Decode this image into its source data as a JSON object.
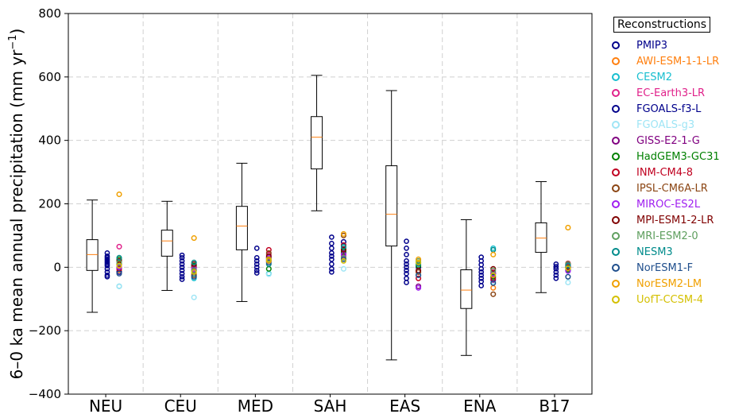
{
  "chart_data": {
    "type": "box",
    "ylabel": "6–0 ka mean annual precipitation (mm yr",
    "ylabel_sup": "−1",
    "ylabel_end": ")",
    "ylim": [
      -400,
      800
    ],
    "yticks": [
      "800",
      "600",
      "400",
      "200",
      "0",
      "−200",
      "−400"
    ],
    "categories": [
      "NEU",
      "CEU",
      "MED",
      "SAH",
      "EAS",
      "ENA",
      "B17"
    ],
    "grid": true,
    "legend_placement": "outside-right",
    "boxes": [
      {
        "category": "NEU",
        "whisker_low": -142,
        "q1": -10,
        "median": 40,
        "q3": 87,
        "whisker_high": 212
      },
      {
        "category": "CEU",
        "whisker_low": -73,
        "q1": 35,
        "median": 83,
        "q3": 117,
        "whisker_high": 208
      },
      {
        "category": "MED",
        "whisker_low": -108,
        "q1": 55,
        "median": 130,
        "q3": 192,
        "whisker_high": 328
      },
      {
        "category": "SAH",
        "whisker_low": 178,
        "q1": 310,
        "median": 410,
        "q3": 475,
        "whisker_high": 605
      },
      {
        "category": "EAS",
        "whisker_low": -292,
        "q1": 67,
        "median": 167,
        "q3": 320,
        "whisker_high": 557
      },
      {
        "category": "ENA",
        "whisker_low": -278,
        "q1": -130,
        "median": -72,
        "q3": -8,
        "whisker_high": 150
      },
      {
        "category": "B17",
        "whisker_low": -80,
        "q1": 47,
        "median": 92,
        "q3": 140,
        "whisker_high": 270
      }
    ],
    "pmip3_points": {
      "NEU": [
        45,
        35,
        25,
        15,
        5,
        -5,
        -15,
        -25,
        -30,
        30,
        20,
        10
      ],
      "CEU": [
        38,
        30,
        20,
        10,
        0,
        -10,
        -20,
        -30,
        -38
      ],
      "MED": [
        60,
        30,
        20,
        10,
        0,
        -10,
        -18
      ],
      "SAH": [
        95,
        75,
        60,
        45,
        35,
        25,
        10,
        -5,
        -15
      ],
      "EAS": [
        82,
        60,
        40,
        20,
        10,
        0,
        -10,
        -20,
        -35,
        -48
      ],
      "ENA": [
        32,
        20,
        8,
        -5,
        -15,
        -25,
        -35,
        -45,
        -58
      ],
      "B17": [
        10,
        2,
        -5,
        -15,
        -25,
        -35
      ]
    },
    "series": [
      {
        "name": "AWI-ESM-1-1-LR",
        "color": "#ff7f0e",
        "values": [
          -10,
          -20,
          30,
          60,
          -15,
          -65,
          0
        ]
      },
      {
        "name": "CESM2",
        "color": "#17becf",
        "values": [
          -60,
          -35,
          -20,
          60,
          -25,
          60,
          -8
        ]
      },
      {
        "name": "EC-Earth3-LR",
        "color": "#e0218a",
        "values": [
          65,
          -5,
          40,
          35,
          15,
          -15,
          5
        ]
      },
      {
        "name": "FGOALS-f3-L",
        "color": "#00008b",
        "values": [
          -15,
          5,
          20,
          80,
          0,
          -20,
          0
        ]
      },
      {
        "name": "FGOALS-g3",
        "color": "#9fe5f5",
        "values": [
          -60,
          -95,
          -22,
          -5,
          -10,
          -45,
          -48
        ]
      },
      {
        "name": "GISS-E2-1-G",
        "color": "#800080",
        "values": [
          0,
          -10,
          30,
          45,
          -60,
          -40,
          8
        ]
      },
      {
        "name": "HadGEM3-GC31",
        "color": "#008000",
        "values": [
          25,
          5,
          -5,
          50,
          5,
          -30,
          -10
        ]
      },
      {
        "name": "INM-CM4-8",
        "color": "#c00020",
        "values": [
          -5,
          0,
          55,
          70,
          -35,
          -35,
          12
        ]
      },
      {
        "name": "IPSL-CM6A-LR",
        "color": "#8b4513",
        "values": [
          10,
          -25,
          45,
          100,
          -15,
          -85,
          -5
        ]
      },
      {
        "name": "MIROC-ES2L",
        "color": "#a020f0",
        "values": [
          0,
          -5,
          30,
          40,
          -65,
          -20,
          -12
        ]
      },
      {
        "name": "MPI-ESM1-2-LR",
        "color": "#800000",
        "values": [
          20,
          10,
          35,
          55,
          -10,
          -5,
          0
        ]
      },
      {
        "name": "MRI-ESM2-0",
        "color": "#5f9f5f",
        "values": [
          15,
          -10,
          25,
          30,
          20,
          -10,
          10
        ]
      },
      {
        "name": "NESM3",
        "color": "#008b8b",
        "values": [
          30,
          15,
          10,
          65,
          10,
          55,
          5
        ]
      },
      {
        "name": "NorESM1-F",
        "color": "#1f4e8c",
        "values": [
          -20,
          -30,
          15,
          25,
          -25,
          -50,
          -30
        ]
      },
      {
        "name": "NorESM2-LM",
        "color": "#f0a000",
        "values": [
          230,
          92,
          20,
          105,
          25,
          40,
          125
        ]
      },
      {
        "name": "UofT-CCSM-4",
        "color": "#d4c000",
        "values": [
          5,
          -15,
          25,
          20,
          15,
          -25,
          -3
        ]
      }
    ]
  },
  "legend": {
    "title": "Reconstructions",
    "items": [
      {
        "name": "PMIP3",
        "color": "#00008b"
      },
      {
        "name": "AWI-ESM-1-1-LR",
        "color": "#ff7f0e"
      },
      {
        "name": "CESM2",
        "color": "#17becf"
      },
      {
        "name": "EC-Earth3-LR",
        "color": "#e0218a"
      },
      {
        "name": "FGOALS-f3-L",
        "color": "#00008b"
      },
      {
        "name": "FGOALS-g3",
        "color": "#9fe5f5"
      },
      {
        "name": "GISS-E2-1-G",
        "color": "#800080"
      },
      {
        "name": "HadGEM3-GC31",
        "color": "#008000"
      },
      {
        "name": "INM-CM4-8",
        "color": "#c00020"
      },
      {
        "name": "IPSL-CM6A-LR",
        "color": "#8b4513"
      },
      {
        "name": "MIROC-ES2L",
        "color": "#a020f0"
      },
      {
        "name": "MPI-ESM1-2-LR",
        "color": "#800000"
      },
      {
        "name": "MRI-ESM2-0",
        "color": "#5f9f5f"
      },
      {
        "name": "NESM3",
        "color": "#008b8b"
      },
      {
        "name": "NorESM1-F",
        "color": "#1f4e8c"
      },
      {
        "name": "NorESM2-LM",
        "color": "#f0a000"
      },
      {
        "name": "UofT-CCSM-4",
        "color": "#d4c000"
      }
    ]
  }
}
